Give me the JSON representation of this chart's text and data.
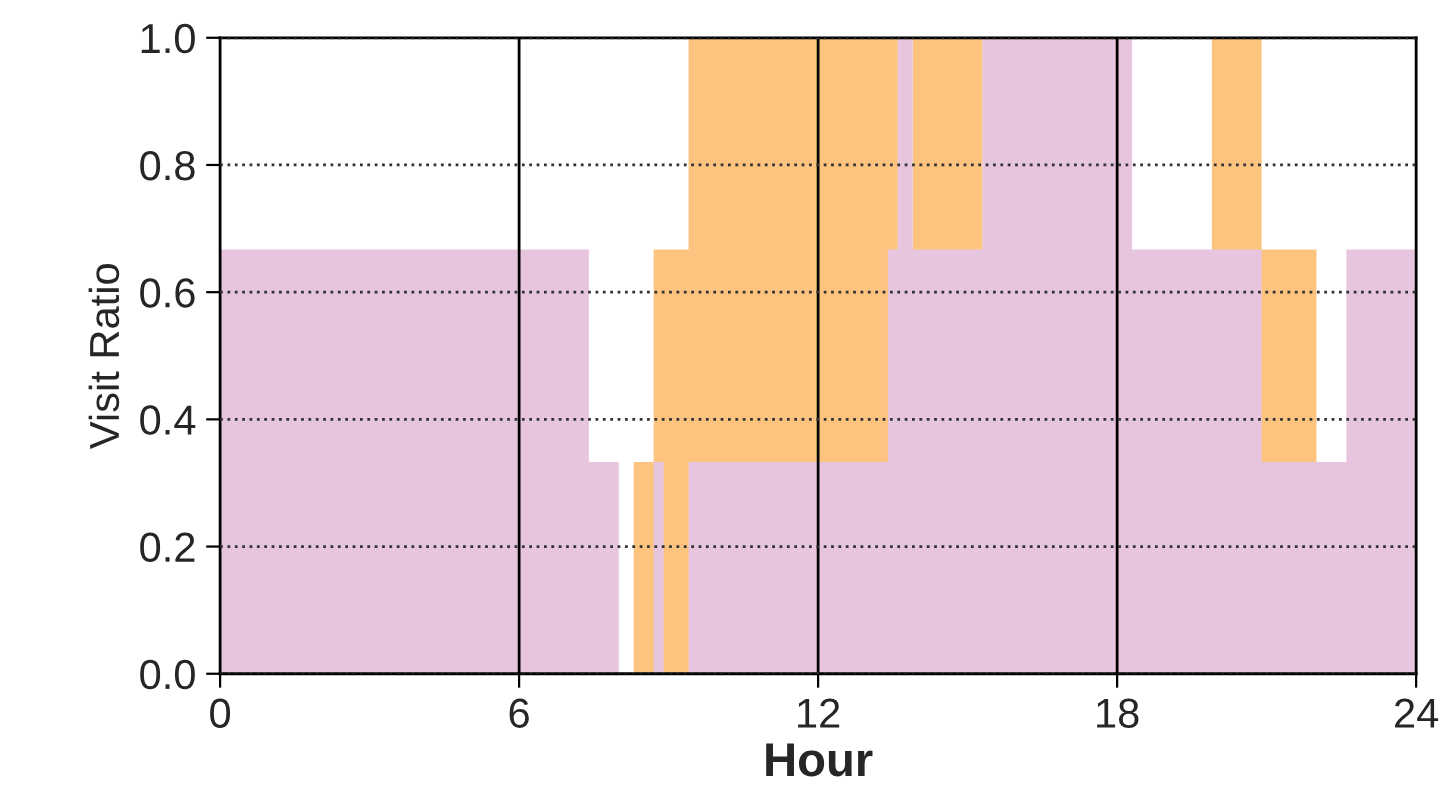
{
  "chart_data": {
    "type": "area",
    "xlabel": "Hour",
    "ylabel": "Visit Ratio",
    "series": [
      {
        "color": "#fdc47f",
        "x": [
          8.3,
          8.3,
          8.7,
          8.7,
          9.4,
          9.4,
          13.6,
          13.6
        ],
        "values": [
          0,
          0.333,
          0.333,
          0.667,
          0.667,
          1,
          1,
          0
        ]
      },
      {
        "color": "#fdc47f",
        "x": [
          13.9,
          13.9,
          15.3,
          15.3
        ],
        "values": [
          0,
          1,
          1,
          0
        ]
      },
      {
        "color": "#fdc47f",
        "x": [
          19.9,
          19.9,
          20.9,
          20.9,
          22.0,
          22.0
        ],
        "values": [
          0,
          1,
          1,
          0.667,
          0.667,
          0
        ]
      },
      {
        "color": "#e8c5de",
        "x": [
          0,
          7.4,
          7.4,
          8.0,
          8.0,
          8.7,
          8.7,
          8.9,
          8.9,
          9.4,
          9.4,
          13.4,
          13.4,
          13.6,
          13.6,
          13.9,
          13.9,
          15.3,
          15.3,
          18.3,
          18.3,
          20.9,
          20.9,
          22.6,
          22.6,
          24
        ],
        "values": [
          0.667,
          0.667,
          0.333,
          0.333,
          0,
          0,
          0.333,
          0.333,
          0,
          0,
          0.333,
          0.333,
          0.667,
          0.667,
          1,
          1,
          0.667,
          0.667,
          1,
          1,
          0.667,
          0.667,
          0.333,
          0.333,
          0.667,
          0.667
        ]
      }
    ],
    "xlim": [
      0,
      24
    ],
    "xticks": [
      0,
      6,
      12,
      18,
      24
    ],
    "ylim": [
      0,
      1
    ],
    "yticks": [
      {
        "value": 0,
        "label": "0.0"
      },
      {
        "value": 0.2,
        "label": "0.2"
      },
      {
        "value": 0.4,
        "label": "0.4"
      },
      {
        "value": 0.6,
        "label": "0.6"
      },
      {
        "value": 0.8,
        "label": "0.8"
      },
      {
        "value": 1,
        "label": "1.0"
      }
    ],
    "grid": "y",
    "line_style": "dotted",
    "ref_lines": [
      {
        "axis": "x",
        "value": 6,
        "color": "#000000"
      },
      {
        "axis": "x",
        "value": 12,
        "color": "#000000"
      },
      {
        "axis": "x",
        "value": 18,
        "color": "#000000"
      }
    ]
  }
}
